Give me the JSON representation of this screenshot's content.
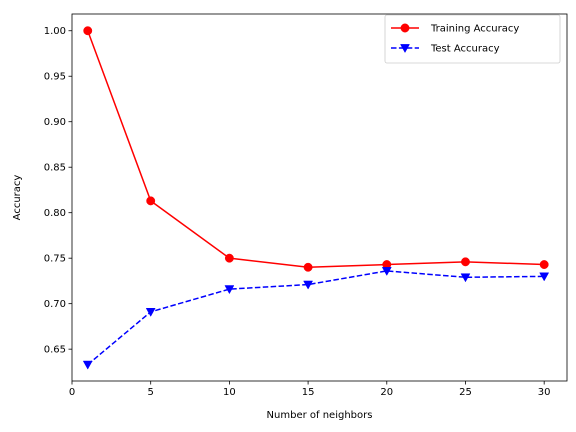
{
  "chart_data": {
    "type": "line",
    "title": "",
    "xlabel": "Number of neighbors",
    "ylabel": "Accuracy",
    "xlim": [
      0.0,
      31.45
    ],
    "ylim": [
      0.615,
      1.0184
    ],
    "xticks": [
      0,
      5,
      10,
      15,
      20,
      25,
      30
    ],
    "xtick_labels": [
      "0",
      "5",
      "10",
      "15",
      "20",
      "25",
      "30"
    ],
    "yticks": [
      0.65,
      0.7,
      0.75,
      0.8,
      0.85,
      0.9,
      0.95,
      1.0
    ],
    "ytick_labels": [
      "0.65",
      "0.70",
      "0.75",
      "0.80",
      "0.85",
      "0.90",
      "0.95",
      "1.00"
    ],
    "grid": false,
    "legend_position": "top-right",
    "x": [
      1,
      5,
      10,
      15,
      20,
      25,
      30
    ],
    "series": [
      {
        "name": "Training Accuracy",
        "values": [
          1.0,
          0.813,
          0.75,
          0.74,
          0.743,
          0.746,
          0.743
        ],
        "color": "#ff0000",
        "line_style": "solid",
        "marker": "circle"
      },
      {
        "name": "Test Accuracy",
        "values": [
          0.633,
          0.691,
          0.716,
          0.721,
          0.736,
          0.729,
          0.73
        ],
        "color": "#0000ff",
        "line_style": "dashed",
        "marker": "triangle-down"
      }
    ]
  }
}
